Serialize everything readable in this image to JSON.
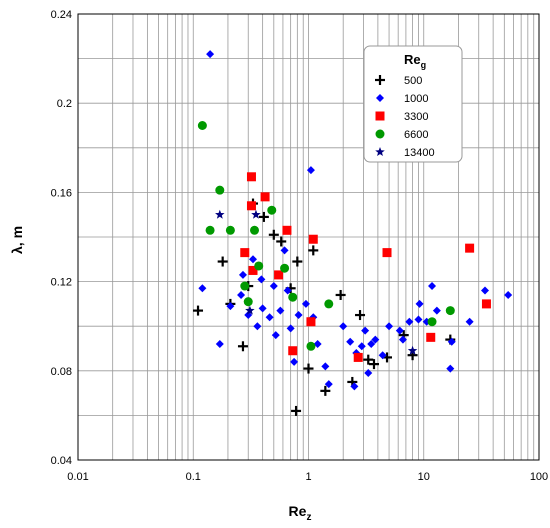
{
  "chart_data": {
    "type": "scatter",
    "x_scale": "log",
    "y_scale": "linear",
    "xlim": [
      0.01,
      100
    ],
    "ylim": [
      0.04,
      0.24
    ],
    "grid": true,
    "legend_position": "top-right",
    "xlabel": "Re",
    "xlabel_sub": "z",
    "ylabel": "λ, m",
    "legend_title": "Re",
    "legend_title_sub": "g",
    "x_ticks": [
      {
        "v": 0.01,
        "label": "0.01"
      },
      {
        "v": 0.1,
        "label": "0.1"
      },
      {
        "v": 1,
        "label": "1"
      },
      {
        "v": 10,
        "label": "10"
      },
      {
        "v": 100,
        "label": "100"
      }
    ],
    "y_ticks": [
      {
        "v": 0.04,
        "label": "0.04"
      },
      {
        "v": 0.08,
        "label": "0.08"
      },
      {
        "v": 0.12,
        "label": "0.12"
      },
      {
        "v": 0.16,
        "label": "0.16"
      },
      {
        "v": 0.2,
        "label": "0.2"
      },
      {
        "v": 0.24,
        "label": "0.24"
      }
    ],
    "series": [
      {
        "name": "500",
        "marker": "plus",
        "color": "#000000",
        "points": [
          [
            0.11,
            0.107
          ],
          [
            0.18,
            0.129
          ],
          [
            0.21,
            0.11
          ],
          [
            0.27,
            0.091
          ],
          [
            0.3,
            0.118
          ],
          [
            0.33,
            0.155
          ],
          [
            0.41,
            0.149
          ],
          [
            0.5,
            0.141
          ],
          [
            0.58,
            0.138
          ],
          [
            0.7,
            0.117
          ],
          [
            0.8,
            0.129
          ],
          [
            0.78,
            0.062
          ],
          [
            1.0,
            0.081
          ],
          [
            1.1,
            0.134
          ],
          [
            1.4,
            0.071
          ],
          [
            1.9,
            0.114
          ],
          [
            2.4,
            0.075
          ],
          [
            2.8,
            0.105
          ],
          [
            3.3,
            0.085
          ],
          [
            3.7,
            0.083
          ],
          [
            4.8,
            0.086
          ],
          [
            6.7,
            0.096
          ],
          [
            8.0,
            0.087
          ],
          [
            17,
            0.094
          ]
        ]
      },
      {
        "name": "1000",
        "marker": "diamond",
        "color": "#0000FF",
        "points": [
          [
            0.14,
            0.222
          ],
          [
            0.12,
            0.117
          ],
          [
            0.17,
            0.092
          ],
          [
            0.21,
            0.109
          ],
          [
            0.26,
            0.114
          ],
          [
            0.27,
            0.123
          ],
          [
            0.3,
            0.105
          ],
          [
            0.33,
            0.13
          ],
          [
            0.36,
            0.1
          ],
          [
            0.39,
            0.121
          ],
          [
            0.4,
            0.108
          ],
          [
            0.46,
            0.104
          ],
          [
            0.5,
            0.118
          ],
          [
            0.52,
            0.096
          ],
          [
            0.57,
            0.107
          ],
          [
            0.62,
            0.134
          ],
          [
            0.66,
            0.116
          ],
          [
            0.7,
            0.099
          ],
          [
            0.75,
            0.084
          ],
          [
            0.82,
            0.105
          ],
          [
            0.95,
            0.11
          ],
          [
            1.05,
            0.17
          ],
          [
            1.1,
            0.104
          ],
          [
            1.2,
            0.092
          ],
          [
            1.4,
            0.082
          ],
          [
            1.5,
            0.074
          ],
          [
            2.0,
            0.1
          ],
          [
            2.3,
            0.093
          ],
          [
            2.5,
            0.073
          ],
          [
            2.6,
            0.088
          ],
          [
            2.9,
            0.091
          ],
          [
            3.1,
            0.098
          ],
          [
            3.3,
            0.079
          ],
          [
            3.5,
            0.092
          ],
          [
            3.8,
            0.094
          ],
          [
            4.4,
            0.087
          ],
          [
            5.0,
            0.1
          ],
          [
            6.2,
            0.098
          ],
          [
            6.6,
            0.094
          ],
          [
            7.5,
            0.102
          ],
          [
            9.2,
            0.11
          ],
          [
            9.0,
            0.103
          ],
          [
            10.6,
            0.102
          ],
          [
            11.8,
            0.118
          ],
          [
            13,
            0.107
          ],
          [
            17,
            0.081
          ],
          [
            17.5,
            0.093
          ],
          [
            25,
            0.102
          ],
          [
            34,
            0.116
          ],
          [
            54,
            0.114
          ]
        ]
      },
      {
        "name": "3300",
        "marker": "square",
        "color": "#FF0000",
        "points": [
          [
            0.28,
            0.133
          ],
          [
            0.32,
            0.167
          ],
          [
            0.32,
            0.154
          ],
          [
            0.33,
            0.125
          ],
          [
            0.42,
            0.158
          ],
          [
            0.55,
            0.123
          ],
          [
            0.65,
            0.143
          ],
          [
            0.73,
            0.089
          ],
          [
            1.05,
            0.102
          ],
          [
            1.1,
            0.139
          ],
          [
            2.7,
            0.086
          ],
          [
            4.8,
            0.133
          ],
          [
            11.5,
            0.095
          ],
          [
            25,
            0.135
          ],
          [
            35,
            0.11
          ]
        ]
      },
      {
        "name": "6600",
        "marker": "circle",
        "color": "#009900",
        "points": [
          [
            0.12,
            0.19
          ],
          [
            0.14,
            0.143
          ],
          [
            0.17,
            0.161
          ],
          [
            0.21,
            0.143
          ],
          [
            0.28,
            0.118
          ],
          [
            0.3,
            0.111
          ],
          [
            0.34,
            0.143
          ],
          [
            0.37,
            0.127
          ],
          [
            0.48,
            0.152
          ],
          [
            0.62,
            0.126
          ],
          [
            0.73,
            0.113
          ],
          [
            1.05,
            0.091
          ],
          [
            1.5,
            0.11
          ],
          [
            11.8,
            0.102
          ],
          [
            17,
            0.107
          ]
        ]
      },
      {
        "name": "13400",
        "marker": "star",
        "color": "#000080",
        "points": [
          [
            0.17,
            0.15
          ],
          [
            0.31,
            0.107
          ],
          [
            0.35,
            0.15
          ],
          [
            8.0,
            0.089
          ]
        ]
      }
    ]
  }
}
